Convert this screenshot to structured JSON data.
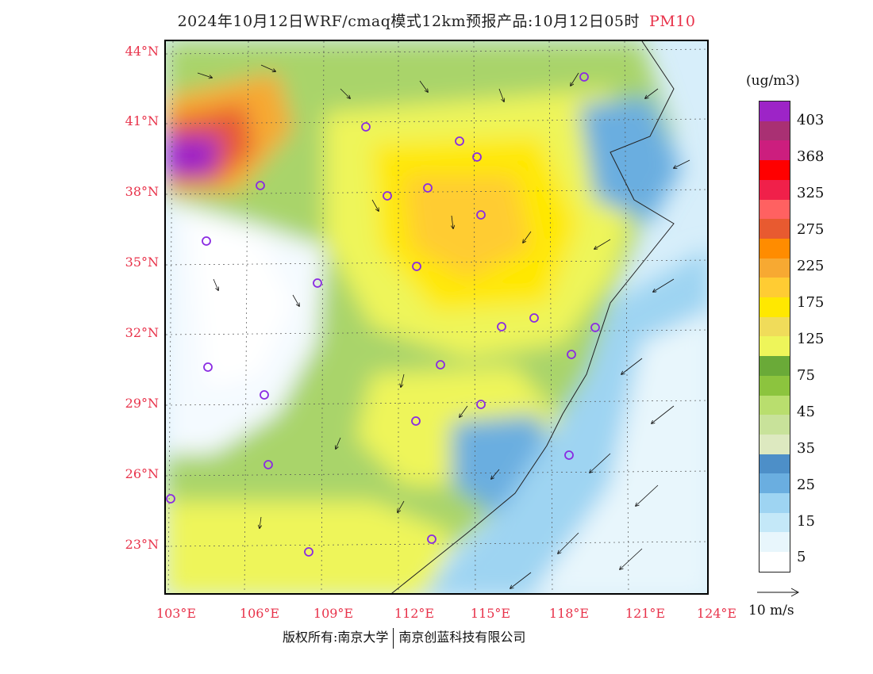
{
  "title": {
    "main": "2024年10月12日WRF/cmaq模式12km预报产品:10月12日05时",
    "variable": "PM10"
  },
  "axes": {
    "lat_labels": [
      "44°N",
      "41°N",
      "38°N",
      "35°N",
      "32°N",
      "29°N",
      "26°N",
      "23°N"
    ],
    "lon_labels": [
      "103°E",
      "106°E",
      "109°E",
      "112°E",
      "115°E",
      "118°E",
      "121°E",
      "124°E"
    ]
  },
  "legend": {
    "unit": "(ug/m3)",
    "labels": [
      "403",
      "368",
      "325",
      "275",
      "225",
      "175",
      "125",
      "75",
      "45",
      "35",
      "25",
      "15",
      "5"
    ],
    "colors": [
      "#9d24c7",
      "#a93073",
      "#cc1e7e",
      "#ff0000",
      "#f0204a",
      "#ff6161",
      "#e85a30",
      "#ff8c00",
      "#f7a932",
      "#ffcc33",
      "#ffe800",
      "#f0dc5a",
      "#eef55a",
      "#6aaa38",
      "#8cc43e",
      "#b9de6e",
      "#c8e29a",
      "#dde9c0",
      "#4d8fc8",
      "#6aaee0",
      "#9ed4f2",
      "#c4e8f8",
      "#e8f6fc",
      "#ffffff"
    ]
  },
  "vector_reference": {
    "label": "10 m/s"
  },
  "footer": {
    "left": "版权所有:南京大学",
    "right": "南京创蓝科技有限公司"
  },
  "colors": {
    "accent": "#e8324a",
    "station": "#8a2be2",
    "ocean": "#cfe9f7"
  }
}
